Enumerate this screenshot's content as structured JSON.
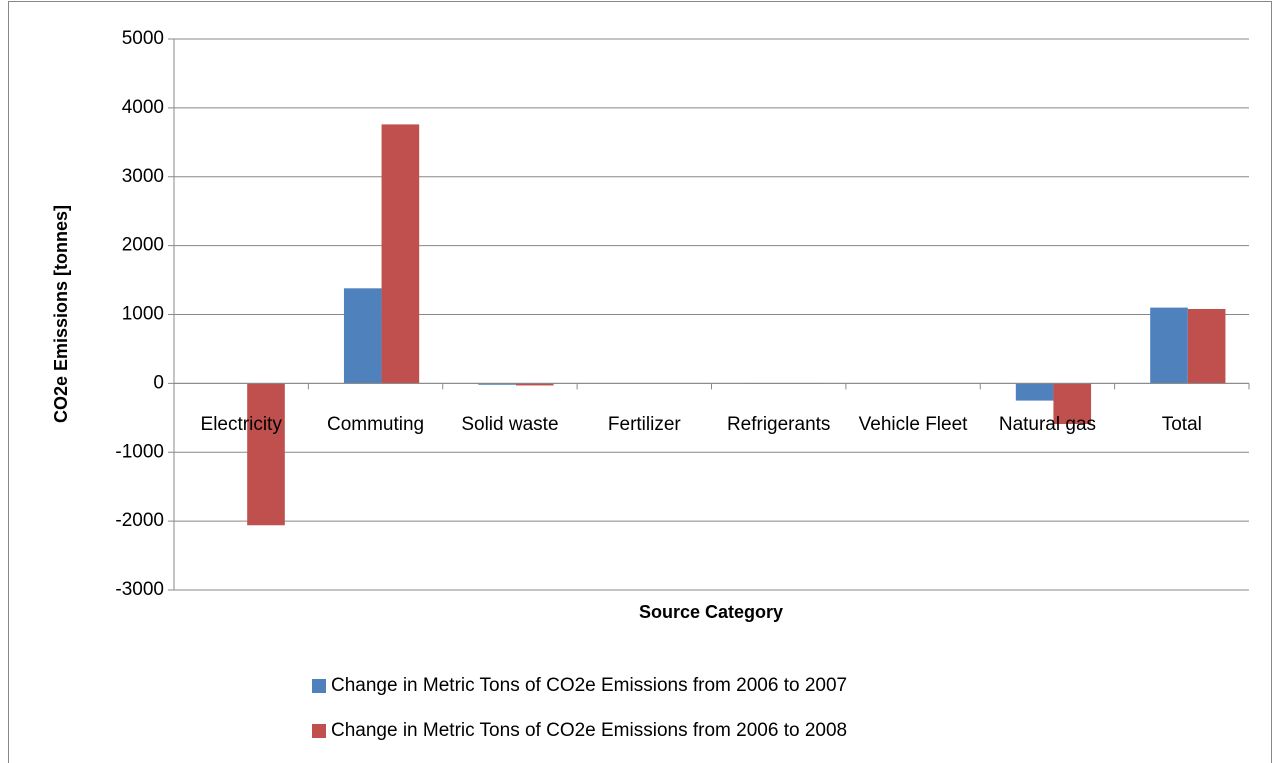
{
  "chart_data": {
    "type": "bar",
    "x_label": "Source Category",
    "y_label": "CO2e Emissions [tonnes]",
    "categories": [
      "Electricity",
      "Commuting",
      "Solid waste",
      "Fertilizer",
      "Refrigerants",
      "Vehicle Fleet",
      "Natural gas",
      "Total"
    ],
    "series": [
      {
        "name": "Change in Metric Tons of CO2e Emissions from 2006 to 2007",
        "color": "#4f81bd",
        "values": [
          0,
          1380,
          -20,
          0,
          -5,
          0,
          -250,
          1100
        ]
      },
      {
        "name": "Change in Metric Tons of CO2e Emissions from 2006 to 2008",
        "color": "#c0504d",
        "values": [
          -2060,
          3760,
          -30,
          0,
          -5,
          0,
          -590,
          1080
        ]
      }
    ],
    "ylim": [
      -3000,
      5000
    ],
    "yticks": [
      -3000,
      -2000,
      -1000,
      0,
      1000,
      2000,
      3000,
      4000,
      5000
    ],
    "grid": true
  }
}
